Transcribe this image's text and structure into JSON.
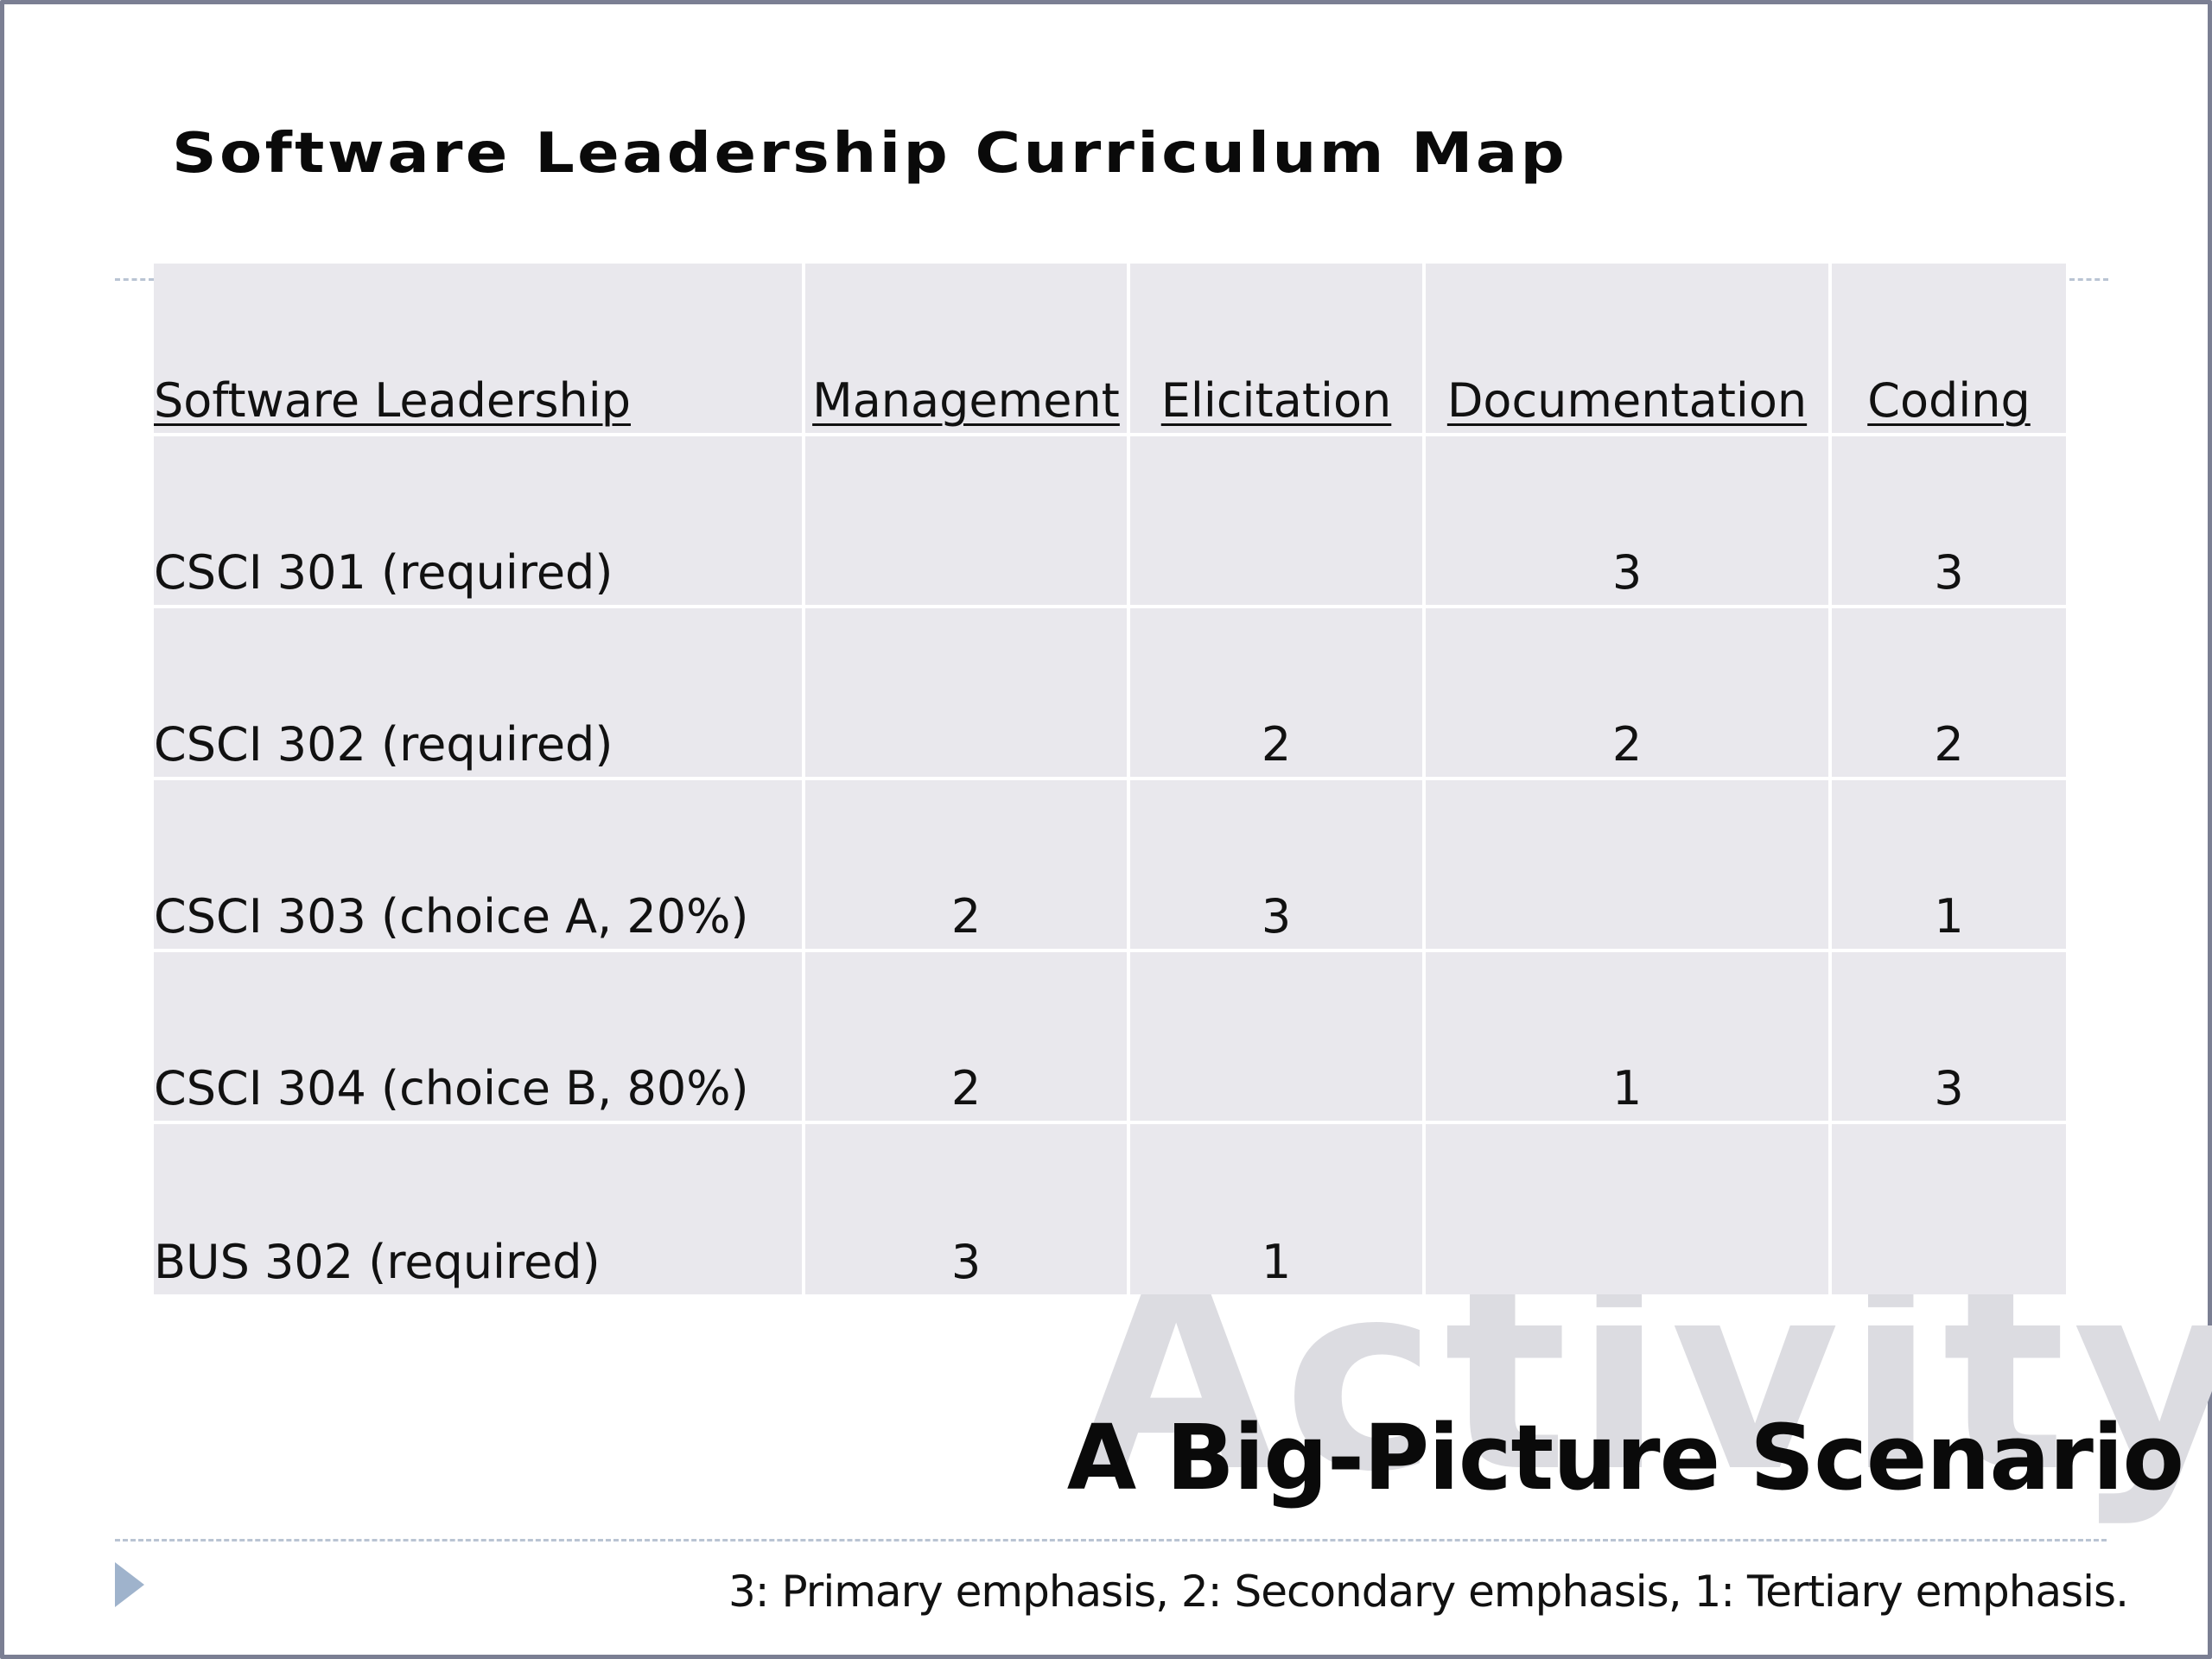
{
  "slide": {
    "title": "Software Leadership Curriculum Map",
    "watermark": "Activity",
    "subtitle": "A Big-Picture Scenario",
    "footnote": "3: Primary emphasis, 2: Secondary emphasis, 1: Tertiary emphasis."
  },
  "table": {
    "headers": [
      "Software Leadership",
      "Management",
      "Elicitation",
      "Documentation",
      "Coding"
    ],
    "rows": [
      {
        "course": "CSCI 301 (required)",
        "cells": [
          "",
          "",
          "3",
          "3"
        ]
      },
      {
        "course": "CSCI 302 (required)",
        "cells": [
          "",
          "2",
          "2",
          "2"
        ]
      },
      {
        "course": "CSCI 303 (choice A, 20%)",
        "cells": [
          "2",
          "3",
          "",
          "1"
        ]
      },
      {
        "course": "CSCI 304 (choice B, 80%)",
        "cells": [
          "2",
          "",
          "1",
          "3"
        ]
      },
      {
        "course": "BUS 302 (required)",
        "cells": [
          "3",
          "1",
          "",
          ""
        ]
      }
    ]
  },
  "colors": {
    "table_bg": "#e9e8ed",
    "frame": "#7b7f93",
    "watermark": "#dcdce1",
    "accent": "#9fb3cc"
  },
  "icons": {
    "nav": "triangle-right-icon"
  }
}
